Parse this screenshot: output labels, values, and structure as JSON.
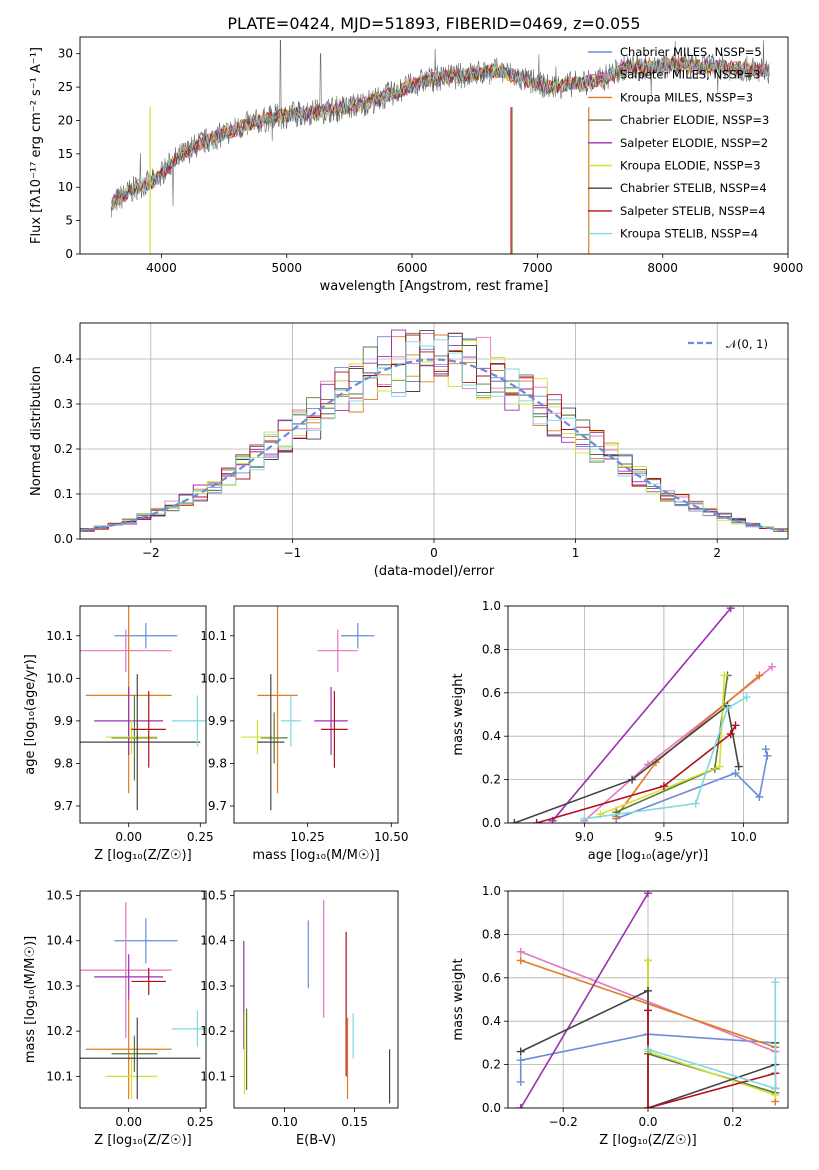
{
  "chart_data": [
    {
      "type": "line",
      "title": "PLATE=0424, MJD=51893, FIBERID=0469, z=0.055",
      "xlabel": "wavelength [Angstrom, rest frame]",
      "ylabel": "Flux [fλ10⁻¹⁷ erg cm⁻² s⁻¹ A⁻¹]",
      "xlim": [
        3350,
        9000
      ],
      "ylim": [
        0,
        32.5
      ],
      "xticks": [
        "4000",
        "5000",
        "6000",
        "7000",
        "8000",
        "9000"
      ],
      "yticks": [
        "0",
        "5",
        "10",
        "15",
        "20",
        "25",
        "30"
      ],
      "legend_position": "right",
      "series": [
        {
          "name": "Chabrier MILES, NSSP=5",
          "color": "#6a8dd8"
        },
        {
          "name": "Salpeter MILES, NSSP=3",
          "color": "#e377c2"
        },
        {
          "name": "Kroupa MILES, NSSP=3",
          "color": "#e07b20"
        },
        {
          "name": "Chabrier ELODIE, NSSP=3",
          "color": "#5a7a3a"
        },
        {
          "name": "Salpeter ELODIE, NSSP=2",
          "color": "#9b30b0"
        },
        {
          "name": "Kroupa ELODIE, NSSP=3",
          "color": "#d8e030"
        },
        {
          "name": "Chabrier STELIB, NSSP=4",
          "color": "#444444"
        },
        {
          "name": "Salpeter STELIB, NSSP=4",
          "color": "#b01020"
        },
        {
          "name": "Kroupa STELIB, NSSP=4",
          "color": "#80d8e0"
        }
      ],
      "continuum": {
        "x": [
          3600,
          3800,
          3950,
          4100,
          4300,
          4500,
          4700,
          4900,
          5100,
          5300,
          5500,
          5700,
          5900,
          6100,
          6300,
          6500,
          6700,
          6900,
          7100,
          7300,
          7500,
          7700,
          7900,
          8100,
          8300,
          8500,
          8800
        ],
        "y": [
          7.5,
          10,
          11,
          14,
          16.5,
          18,
          19.5,
          20.5,
          21,
          21.5,
          22,
          23,
          24.5,
          26,
          26.5,
          27,
          27.5,
          26,
          25,
          25.5,
          26,
          28,
          28,
          28.5,
          28,
          28,
          27.5
        ]
      }
    },
    {
      "type": "line",
      "xlabel": "(data-model)/error",
      "ylabel": "Normed distribution",
      "xlim": [
        -2.5,
        2.5
      ],
      "ylim": [
        0,
        0.48
      ],
      "xticks": [
        "−2",
        "−1",
        "0",
        "1",
        "2"
      ],
      "yticks": [
        "0.0",
        "0.1",
        "0.2",
        "0.3",
        "0.4"
      ],
      "legend": "𝒩(0, 1)",
      "legend_color": "#6a8dd8",
      "histogram_colors": [
        "#6a8dd8",
        "#e377c2",
        "#e07b20",
        "#5a7a3a",
        "#9b30b0",
        "#d8e030",
        "#444444",
        "#b01020",
        "#80d8e0"
      ]
    },
    {
      "type": "scatter",
      "xlabel": "Z [log₁₀(Z/Z☉)]",
      "ylabel": "age  [log₁₀(age/yr)]",
      "xlim": [
        -0.17,
        0.27
      ],
      "ylim": [
        9.66,
        10.17
      ],
      "xticks": [
        "0.00",
        "0.25"
      ],
      "yticks": [
        "9.7",
        "9.8",
        "9.9",
        "10.0",
        "10.1"
      ],
      "points": [
        {
          "x": 0.06,
          "y": 10.1,
          "xerr": 0.11,
          "yerr": 0.03,
          "color": "#6a8dd8"
        },
        {
          "x": -0.01,
          "y": 10.065,
          "xerr": 0.16,
          "yerr": 0.05,
          "color": "#e377c2"
        },
        {
          "x": 0.0,
          "y": 9.96,
          "xerr": 0.15,
          "yerr": 0.23,
          "color": "#e07b20"
        },
        {
          "x": 0.02,
          "y": 9.86,
          "xerr": 0.08,
          "yerr": 0.1,
          "color": "#5a7a3a"
        },
        {
          "x": 0.0,
          "y": 9.9,
          "xerr": 0.12,
          "yerr": 0.08,
          "color": "#9b30b0"
        },
        {
          "x": 0.01,
          "y": 9.862,
          "xerr": 0.09,
          "yerr": 0.04,
          "color": "#d8e030"
        },
        {
          "x": 0.03,
          "y": 9.85,
          "xerr": 0.22,
          "yerr": 0.16,
          "color": "#444444"
        },
        {
          "x": 0.07,
          "y": 9.88,
          "xerr": 0.06,
          "yerr": 0.09,
          "color": "#b01020"
        },
        {
          "x": 0.24,
          "y": 9.9,
          "xerr": 0.09,
          "yerr": 0.06,
          "color": "#80d8e0"
        }
      ]
    },
    {
      "type": "scatter",
      "xlabel": "mass [log₁₀(M/M☉)]",
      "xlim": [
        10.03,
        10.52
      ],
      "ylim": [
        9.66,
        10.17
      ],
      "xticks": [
        "10.25",
        "10.50"
      ],
      "yticks": [
        "9.7",
        "9.8",
        "9.9",
        "10.0",
        "10.1"
      ],
      "points": [
        {
          "x": 10.4,
          "y": 10.1,
          "xerr": 0.05,
          "yerr": 0.03,
          "color": "#6a8dd8"
        },
        {
          "x": 10.34,
          "y": 10.065,
          "xerr": 0.06,
          "yerr": 0.05,
          "color": "#e377c2"
        },
        {
          "x": 10.16,
          "y": 9.96,
          "xerr": 0.06,
          "yerr": 0.23,
          "color": "#e07b20"
        },
        {
          "x": 10.15,
          "y": 9.86,
          "xerr": 0.04,
          "yerr": 0.06,
          "color": "#5a7a3a"
        },
        {
          "x": 10.32,
          "y": 9.9,
          "xerr": 0.05,
          "yerr": 0.08,
          "color": "#9b30b0"
        },
        {
          "x": 10.1,
          "y": 9.862,
          "xerr": 0.05,
          "yerr": 0.04,
          "color": "#d8e030"
        },
        {
          "x": 10.14,
          "y": 9.85,
          "xerr": 0.04,
          "yerr": 0.16,
          "color": "#444444"
        },
        {
          "x": 10.33,
          "y": 9.88,
          "xerr": 0.04,
          "yerr": 0.09,
          "color": "#b01020"
        },
        {
          "x": 10.2,
          "y": 9.9,
          "xerr": 0.03,
          "yerr": 0.06,
          "color": "#80d8e0"
        }
      ]
    },
    {
      "type": "line",
      "xlabel": "age  [log₁₀(age/yr)]",
      "ylabel": "mass weight",
      "xlim": [
        8.52,
        10.28
      ],
      "ylim": [
        0,
        1.0
      ],
      "xticks": [
        "9.0",
        "9.5",
        "10.0"
      ],
      "yticks": [
        "0.0",
        "0.2",
        "0.4",
        "0.6",
        "0.8",
        "1.0"
      ],
      "series": [
        {
          "color": "#6a8dd8",
          "x": [
            9.2,
            9.95,
            10.1,
            10.15,
            10.14
          ],
          "y": [
            0.02,
            0.23,
            0.12,
            0.31,
            0.34
          ]
        },
        {
          "color": "#e377c2",
          "x": [
            9.0,
            9.4,
            10.18
          ],
          "y": [
            0.01,
            0.27,
            0.72
          ]
        },
        {
          "color": "#e07b20",
          "x": [
            9.2,
            9.45,
            10.1
          ],
          "y": [
            0.03,
            0.28,
            0.68
          ]
        },
        {
          "color": "#5a7a3a",
          "x": [
            9.2,
            9.82,
            9.9
          ],
          "y": [
            0.05,
            0.25,
            0.68
          ]
        },
        {
          "color": "#9b30b0",
          "x": [
            8.8,
            9.92
          ],
          "y": [
            0.01,
            0.99
          ]
        },
        {
          "color": "#d8e030",
          "x": [
            9.1,
            9.85,
            9.88
          ],
          "y": [
            0.04,
            0.26,
            0.68
          ]
        },
        {
          "color": "#444444",
          "x": [
            8.56,
            9.3,
            9.9,
            9.97
          ],
          "y": [
            0.0,
            0.2,
            0.54,
            0.26
          ]
        },
        {
          "color": "#b01020",
          "x": [
            8.7,
            9.5,
            9.92,
            9.95
          ],
          "y": [
            0.0,
            0.17,
            0.41,
            0.45
          ]
        },
        {
          "color": "#80d8e0",
          "x": [
            9.0,
            9.7,
            9.9,
            10.02
          ],
          "y": [
            0.02,
            0.09,
            0.53,
            0.58
          ]
        }
      ]
    },
    {
      "type": "scatter",
      "xlabel": "Z [log₁₀(Z/Z☉)]",
      "ylabel": "mass [log₁₀(M/M☉)]",
      "xlim": [
        -0.17,
        0.27
      ],
      "ylim": [
        10.03,
        10.51
      ],
      "xticks": [
        "0.00",
        "0.25"
      ],
      "yticks": [
        "10.1",
        "10.2",
        "10.3",
        "10.4",
        "10.5"
      ],
      "points": [
        {
          "x": 0.06,
          "y": 10.4,
          "xerr": 0.11,
          "yerr": 0.05,
          "color": "#6a8dd8"
        },
        {
          "x": -0.01,
          "y": 10.335,
          "xerr": 0.16,
          "yerr": 0.15,
          "color": "#e377c2"
        },
        {
          "x": 0.0,
          "y": 10.16,
          "xerr": 0.15,
          "yerr": 0.11,
          "color": "#e07b20"
        },
        {
          "x": 0.02,
          "y": 10.15,
          "xerr": 0.08,
          "yerr": 0.04,
          "color": "#5a7a3a"
        },
        {
          "x": 0.0,
          "y": 10.32,
          "xerr": 0.12,
          "yerr": 0.05,
          "color": "#9b30b0"
        },
        {
          "x": 0.01,
          "y": 10.1,
          "xerr": 0.09,
          "yerr": 0.05,
          "color": "#d8e030"
        },
        {
          "x": 0.03,
          "y": 10.14,
          "xerr": 0.22,
          "yerr": 0.09,
          "color": "#444444"
        },
        {
          "x": 0.07,
          "y": 10.31,
          "xerr": 0.06,
          "yerr": 0.03,
          "color": "#b01020"
        },
        {
          "x": 0.24,
          "y": 10.205,
          "xerr": 0.09,
          "yerr": 0.04,
          "color": "#80d8e0"
        }
      ]
    },
    {
      "type": "scatter",
      "xlabel": "E(B-V)",
      "xlim": [
        0.064,
        0.181
      ],
      "ylim": [
        10.03,
        10.51
      ],
      "xticks": [
        "0.10",
        "0.15"
      ],
      "yticks": [
        "10.1",
        "10.2",
        "10.3",
        "10.4",
        "10.5"
      ],
      "points": [
        {
          "x": 0.117,
          "y": 10.37,
          "yerr": 0.075,
          "color": "#6a8dd8"
        },
        {
          "x": 0.128,
          "y": 10.36,
          "yerr": 0.13,
          "color": "#e377c2"
        },
        {
          "x": 0.145,
          "y": 10.14,
          "yerr": 0.09,
          "color": "#e07b20"
        },
        {
          "x": 0.073,
          "y": 10.16,
          "yerr": 0.09,
          "color": "#5a7a3a"
        },
        {
          "x": 0.071,
          "y": 10.28,
          "yerr": 0.12,
          "color": "#9b30b0"
        },
        {
          "x": 0.0715,
          "y": 10.15,
          "yerr": 0.09,
          "color": "#d8e030"
        },
        {
          "x": 0.175,
          "y": 10.1,
          "yerr": 0.06,
          "color": "#444444"
        },
        {
          "x": 0.144,
          "y": 10.26,
          "yerr": 0.16,
          "color": "#b01020"
        },
        {
          "x": 0.149,
          "y": 10.19,
          "yerr": 0.05,
          "color": "#80d8e0"
        }
      ]
    },
    {
      "type": "line",
      "xlabel": "Z [log₁₀(Z/Z☉)]",
      "ylabel": "mass weight",
      "xlim": [
        -0.33,
        0.33
      ],
      "ylim": [
        0,
        1.0
      ],
      "xticks": [
        "−0.2",
        "0.0",
        "0.2"
      ],
      "yticks": [
        "0.0",
        "0.2",
        "0.4",
        "0.6",
        "0.8",
        "1.0"
      ],
      "series": [
        {
          "color": "#6a8dd8",
          "x": [
            -0.3,
            -0.3,
            0.0,
            0.3
          ],
          "y": [
            0.12,
            0.22,
            0.34,
            0.3
          ]
        },
        {
          "color": "#e377c2",
          "x": [
            -0.3,
            0.3
          ],
          "y": [
            0.72,
            0.26
          ]
        },
        {
          "color": "#e07b20",
          "x": [
            -0.3,
            0.3,
            0.3
          ],
          "y": [
            0.68,
            0.28,
            0.03
          ]
        },
        {
          "color": "#5a7a3a",
          "x": [
            0.0,
            0.0,
            0.3
          ],
          "y": [
            0.68,
            0.25,
            0.07
          ]
        },
        {
          "color": "#9b30b0",
          "x": [
            -0.3,
            0.0
          ],
          "y": [
            0.0,
            0.99
          ]
        },
        {
          "color": "#d8e030",
          "x": [
            0.0,
            0.0,
            0.3
          ],
          "y": [
            0.68,
            0.26,
            0.06
          ]
        },
        {
          "color": "#444444",
          "x": [
            -0.3,
            0.0,
            0.0,
            0.3,
            0.3
          ],
          "y": [
            0.26,
            0.54,
            0.0,
            0.2,
            0.3
          ]
        },
        {
          "color": "#b01020",
          "x": [
            0.0,
            0.0,
            0.3,
            0.3
          ],
          "y": [
            0.45,
            0.0,
            0.16,
            0.09
          ]
        },
        {
          "color": "#80d8e0",
          "x": [
            0.0,
            0.3,
            0.3
          ],
          "y": [
            0.27,
            0.09,
            0.58
          ]
        }
      ]
    }
  ]
}
